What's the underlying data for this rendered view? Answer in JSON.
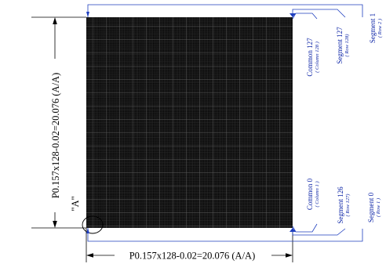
{
  "dimensions": {
    "vertical": "P0.157x128-0.02=20.076 (A/A)",
    "horizontal": "P0.157x128-0.02=20.076 (A/A)"
  },
  "detail_marker": "\"A\"",
  "callouts": {
    "common_127": {
      "name": "Common 127",
      "sub": "( Column 128 )"
    },
    "segment_127": {
      "name": "Segment 127",
      "sub": "( Row 128)"
    },
    "segment_1": {
      "name": "Segment 1",
      "sub": "( Row 2 )"
    },
    "common_0": {
      "name": "Common 0",
      "sub": "( Column 1 )"
    },
    "segment_126": {
      "name": "Segment 126",
      "sub": "( Row 127)"
    },
    "segment_0": {
      "name": "Segment 0",
      "sub": "( Row 1 )"
    }
  },
  "colors": {
    "matrix": "#000000",
    "grid_lines": "#3a3a3a",
    "callout_text": "#0b23a6",
    "callout_leaders": "#1f3fbf"
  }
}
